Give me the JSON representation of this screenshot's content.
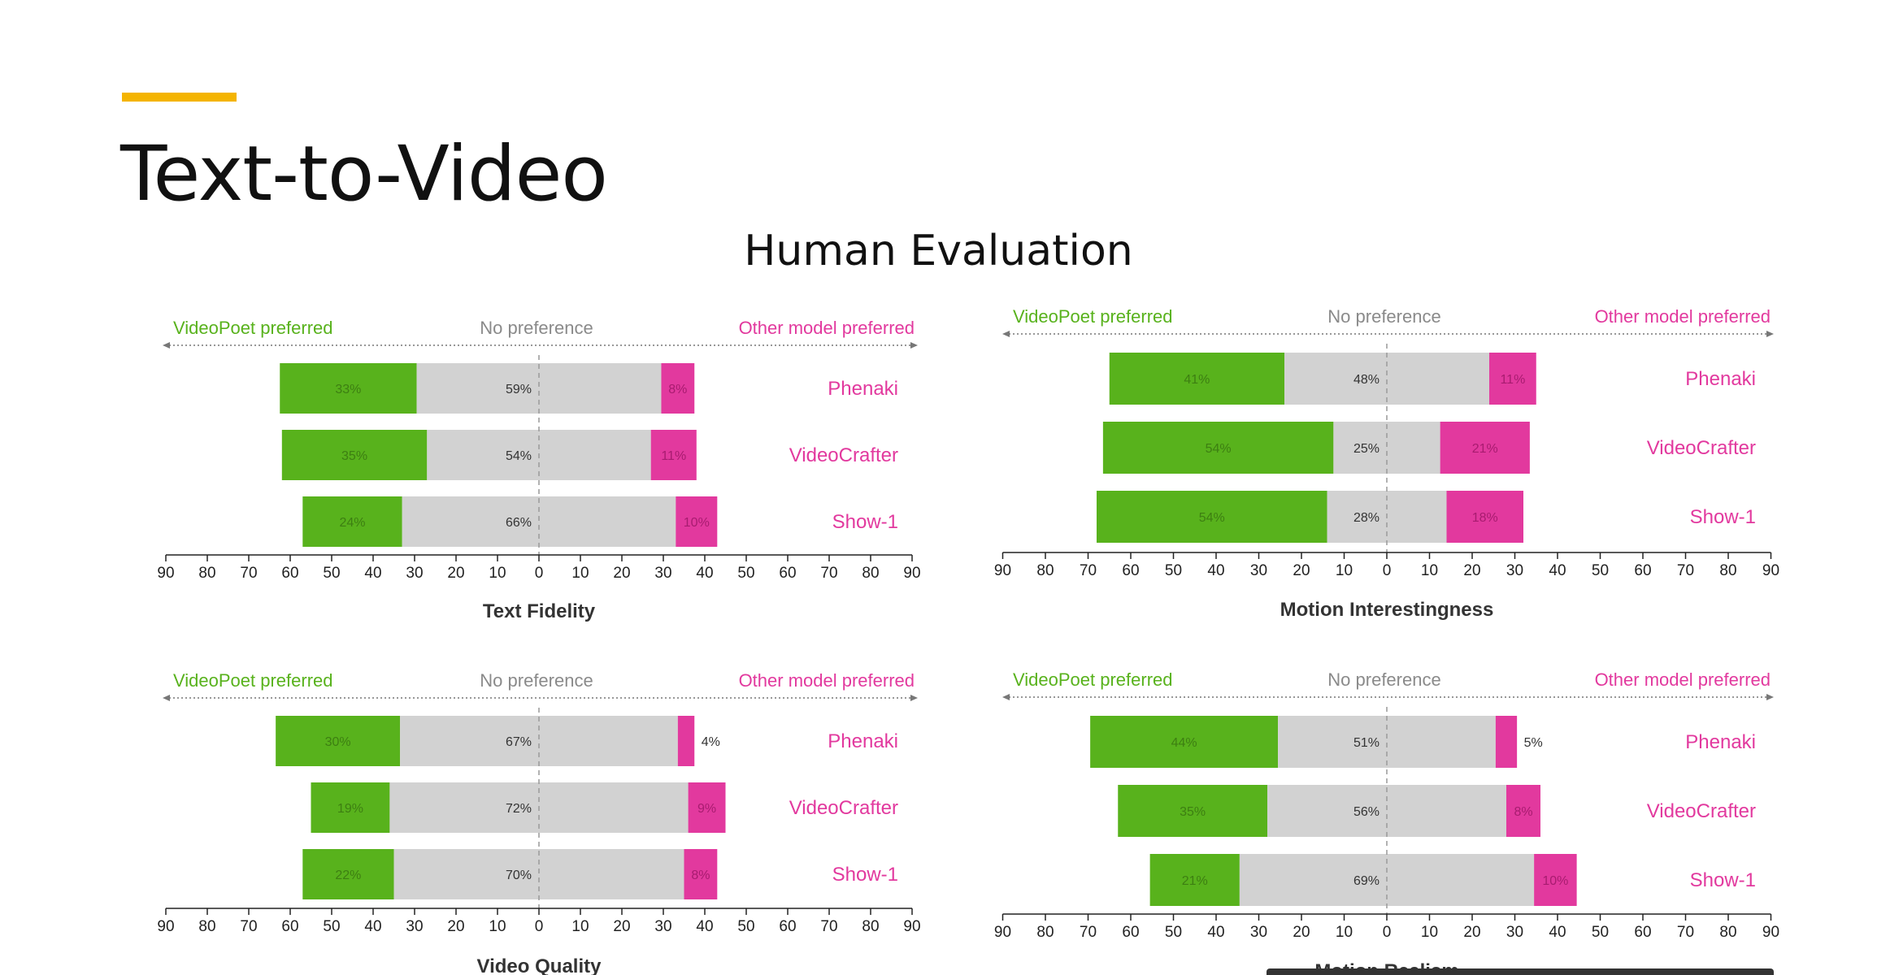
{
  "page": {
    "title": "Text-to-Video",
    "subtitle": "Human Evaluation"
  },
  "colors": {
    "videopoet": "#58b21c",
    "no_preference": "#d2d2d2",
    "other_model": "#e2399e",
    "accent": "#f4b400"
  },
  "chart_data": [
    {
      "type": "bar",
      "orientation": "horizontal-diverging",
      "xlabel": "Text Fidelity",
      "header": {
        "left": "VideoPoet preferred",
        "center": "No preference",
        "right": "Other model preferred"
      },
      "categories": [
        "Phenaki",
        "VideoCrafter",
        "Show-1"
      ],
      "series": [
        {
          "name": "VideoPoet preferred",
          "values": [
            33,
            35,
            24
          ]
        },
        {
          "name": "No preference",
          "values": [
            59,
            54,
            66
          ]
        },
        {
          "name": "Other model preferred",
          "values": [
            8,
            11,
            10
          ]
        }
      ],
      "xlim": [
        -90,
        90
      ],
      "xticks": [
        "90",
        "80",
        "70",
        "60",
        "50",
        "40",
        "30",
        "20",
        "10",
        "0",
        "10",
        "20",
        "30",
        "40",
        "50",
        "60",
        "70",
        "80",
        "90"
      ]
    },
    {
      "type": "bar",
      "orientation": "horizontal-diverging",
      "xlabel": "Motion Interestingness",
      "header": {
        "left": "VideoPoet preferred",
        "center": "No preference",
        "right": "Other model preferred"
      },
      "categories": [
        "Phenaki",
        "VideoCrafter",
        "Show-1"
      ],
      "series": [
        {
          "name": "VideoPoet preferred",
          "values": [
            41,
            54,
            54
          ]
        },
        {
          "name": "No preference",
          "values": [
            48,
            25,
            28
          ]
        },
        {
          "name": "Other model preferred",
          "values": [
            11,
            21,
            18
          ]
        }
      ],
      "xlim": [
        -90,
        90
      ],
      "xticks": [
        "90",
        "80",
        "70",
        "60",
        "50",
        "40",
        "30",
        "20",
        "10",
        "0",
        "10",
        "20",
        "30",
        "40",
        "50",
        "60",
        "70",
        "80",
        "90"
      ]
    },
    {
      "type": "bar",
      "orientation": "horizontal-diverging",
      "xlabel": "Video Quality",
      "header": {
        "left": "VideoPoet preferred",
        "center": "No preference",
        "right": "Other model preferred"
      },
      "categories": [
        "Phenaki",
        "VideoCrafter",
        "Show-1"
      ],
      "series": [
        {
          "name": "VideoPoet preferred",
          "values": [
            30,
            19,
            22
          ]
        },
        {
          "name": "No preference",
          "values": [
            67,
            72,
            70
          ]
        },
        {
          "name": "Other model preferred",
          "values": [
            4,
            9,
            8
          ]
        }
      ],
      "xlim": [
        -90,
        90
      ],
      "xticks": [
        "90",
        "80",
        "70",
        "60",
        "50",
        "40",
        "30",
        "20",
        "10",
        "0",
        "10",
        "20",
        "30",
        "40",
        "50",
        "60",
        "70",
        "80",
        "90"
      ]
    },
    {
      "type": "bar",
      "orientation": "horizontal-diverging",
      "xlabel": "Motion Realism",
      "header": {
        "left": "VideoPoet preferred",
        "center": "No preference",
        "right": "Other model preferred"
      },
      "categories": [
        "Phenaki",
        "VideoCrafter",
        "Show-1"
      ],
      "series": [
        {
          "name": "VideoPoet preferred",
          "values": [
            44,
            35,
            21
          ]
        },
        {
          "name": "No preference",
          "values": [
            51,
            56,
            69
          ]
        },
        {
          "name": "Other model preferred",
          "values": [
            5,
            8,
            10
          ]
        }
      ],
      "xlim": [
        -90,
        90
      ],
      "xticks": [
        "90",
        "80",
        "70",
        "60",
        "50",
        "40",
        "30",
        "20",
        "10",
        "0",
        "10",
        "20",
        "30",
        "40",
        "50",
        "60",
        "70",
        "80",
        "90"
      ]
    }
  ]
}
